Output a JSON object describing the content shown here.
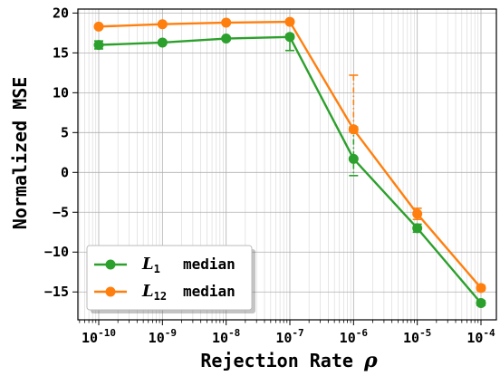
{
  "chart_data": {
    "type": "line",
    "xlabel": "Rejection Rate",
    "xlabel_symbol": "ρ",
    "ylabel": "Normalized MSE",
    "x_scale": "log",
    "x": [
      1e-10,
      1e-09,
      1e-08,
      1e-07,
      1e-06,
      1e-05,
      0.0001
    ],
    "x_tick_exponents": [
      "-10",
      "-9",
      "-8",
      "-7",
      "-6",
      "-5",
      "-4"
    ],
    "x_tick_base": "10",
    "ylim": [
      -18.5,
      20.5
    ],
    "y_ticks": [
      20,
      15,
      10,
      5,
      0,
      -5,
      -10,
      -15
    ],
    "y_tick_labels": [
      "20",
      "15",
      "10",
      "5",
      "0",
      "−5",
      "−10",
      "−15"
    ],
    "grid": true,
    "legend_position": "bottom-left",
    "series": [
      {
        "name_base": "L",
        "name_sub": "1",
        "name_suffix": "median",
        "color": "#2ca02c",
        "values": [
          16.0,
          16.3,
          16.8,
          17.0,
          1.7,
          -7.0,
          -16.4
        ],
        "err_low": [
          0.5,
          0.2,
          0.2,
          1.7,
          2.1,
          0.5,
          0.3
        ],
        "err_high": [
          0.5,
          0.2,
          0.2,
          0.3,
          4.0,
          0.5,
          0.3
        ]
      },
      {
        "name_base": "L",
        "name_sub": "12",
        "name_suffix": "median",
        "color": "#ff7f0e",
        "values": [
          18.3,
          18.6,
          18.8,
          18.9,
          5.4,
          -5.2,
          -14.5
        ],
        "err_low": [
          0.2,
          0.2,
          0.2,
          0.2,
          0.3,
          0.7,
          0.3
        ],
        "err_high": [
          0.2,
          0.2,
          0.2,
          0.2,
          6.8,
          0.7,
          0.3
        ]
      }
    ]
  }
}
